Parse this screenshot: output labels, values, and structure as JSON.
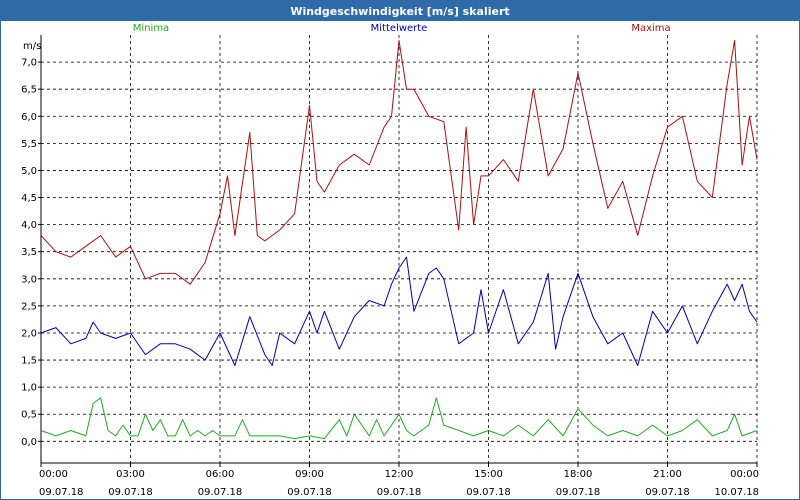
{
  "window": {
    "title": "Windgeschwindigkeit [m/s] skaliert"
  },
  "chart_data": {
    "type": "line",
    "title": "Windgeschwindigkeit [m/s] skaliert",
    "ylabel": "m/s",
    "ylim": [
      -0.4,
      7.5
    ],
    "yticks": [
      "0,0",
      "0,5",
      "1,0",
      "1,5",
      "2,0",
      "2,5",
      "3,0",
      "3,5",
      "4,0",
      "4,5",
      "5,0",
      "5,5",
      "6,0",
      "6,5",
      "7,0"
    ],
    "xticks": [
      {
        "time": "00:00",
        "date": "09.07.18"
      },
      {
        "time": "03:00",
        "date": "09.07.18"
      },
      {
        "time": "06:00",
        "date": "09.07.18"
      },
      {
        "time": "09:00",
        "date": "09.07.18"
      },
      {
        "time": "12:00",
        "date": "09.07.18"
      },
      {
        "time": "15:00",
        "date": "09.07.18"
      },
      {
        "time": "18:00",
        "date": "09.07.18"
      },
      {
        "time": "21:00",
        "date": "09.07.18"
      },
      {
        "time": "00:00",
        "date": "10.07.18"
      }
    ],
    "xrange_hours": [
      0,
      24
    ],
    "grid": true,
    "legend_position": "top",
    "series": [
      {
        "name": "Minima",
        "color": "#22aa22",
        "x": [
          0,
          0.5,
          1,
          1.5,
          1.75,
          2,
          2.25,
          2.5,
          2.75,
          3,
          3.25,
          3.5,
          3.75,
          4,
          4.25,
          4.5,
          4.75,
          5,
          5.25,
          5.5,
          5.75,
          6,
          6.5,
          6.75,
          7,
          7.5,
          8,
          8.5,
          9,
          9.5,
          10,
          10.25,
          10.5,
          11,
          11.25,
          11.5,
          12,
          12.25,
          12.5,
          13,
          13.25,
          13.5,
          14,
          14.5,
          15,
          15.5,
          16,
          16.5,
          17,
          17.5,
          18,
          18.5,
          19,
          19.5,
          20,
          20.5,
          21,
          21.5,
          22,
          22.5,
          23,
          23.25,
          23.5,
          24
        ],
        "values": [
          0.2,
          0.1,
          0.2,
          0.1,
          0.7,
          0.8,
          0.2,
          0.1,
          0.3,
          0.1,
          0.1,
          0.5,
          0.2,
          0.4,
          0.1,
          0.1,
          0.4,
          0.1,
          0.2,
          0.1,
          0.2,
          0.1,
          0.1,
          0.4,
          0.1,
          0.1,
          0.1,
          0.05,
          0.1,
          0.05,
          0.4,
          0.1,
          0.5,
          0.1,
          0.4,
          0.1,
          0.5,
          0.2,
          0.1,
          0.3,
          0.8,
          0.3,
          0.2,
          0.1,
          0.2,
          0.1,
          0.3,
          0.1,
          0.4,
          0.1,
          0.6,
          0.3,
          0.1,
          0.2,
          0.1,
          0.3,
          0.1,
          0.2,
          0.4,
          0.1,
          0.2,
          0.5,
          0.1,
          0.2
        ]
      },
      {
        "name": "Mittelwerte",
        "color": "#0000aa",
        "x": [
          0,
          0.5,
          1,
          1.5,
          1.75,
          2,
          2.5,
          3,
          3.5,
          4,
          4.5,
          5,
          5.5,
          6,
          6.5,
          7,
          7.5,
          7.75,
          8,
          8.5,
          9,
          9.25,
          9.5,
          10,
          10.5,
          11,
          11.5,
          11.75,
          12,
          12.25,
          12.5,
          13,
          13.25,
          13.5,
          14,
          14.5,
          14.75,
          15,
          15.5,
          16,
          16.5,
          17,
          17.25,
          17.5,
          18,
          18.5,
          19,
          19.5,
          20,
          20.5,
          21,
          21.5,
          22,
          22.5,
          23,
          23.25,
          23.5,
          23.75,
          24
        ],
        "values": [
          2.0,
          2.1,
          1.8,
          1.9,
          2.2,
          2.0,
          1.9,
          2.0,
          1.6,
          1.8,
          1.8,
          1.7,
          1.5,
          2.0,
          1.4,
          2.3,
          1.6,
          1.4,
          2.0,
          1.8,
          2.4,
          2.0,
          2.4,
          1.7,
          2.3,
          2.6,
          2.5,
          2.9,
          3.2,
          3.4,
          2.4,
          3.1,
          3.2,
          3.0,
          1.8,
          2.0,
          2.8,
          2.0,
          2.8,
          1.8,
          2.2,
          3.1,
          1.7,
          2.3,
          3.1,
          2.3,
          1.8,
          2.0,
          1.4,
          2.4,
          2.0,
          2.5,
          1.8,
          2.4,
          2.9,
          2.6,
          2.9,
          2.4,
          2.2
        ]
      },
      {
        "name": "Maxima",
        "color": "#aa1111",
        "x": [
          0,
          0.5,
          1,
          1.5,
          2,
          2.5,
          3,
          3.5,
          4,
          4.5,
          5,
          5.5,
          6,
          6.25,
          6.5,
          7,
          7.25,
          7.5,
          8,
          8.5,
          9,
          9.25,
          9.5,
          10,
          10.5,
          11,
          11.5,
          11.75,
          12,
          12.25,
          12.5,
          13,
          13.5,
          14,
          14.25,
          14.5,
          14.75,
          15,
          15.5,
          16,
          16.5,
          17,
          17.5,
          18,
          18.5,
          19,
          19.5,
          20,
          20.5,
          21,
          21.5,
          22,
          22.5,
          23,
          23.25,
          23.5,
          23.75,
          24
        ],
        "values": [
          3.8,
          3.5,
          3.4,
          3.6,
          3.8,
          3.4,
          3.6,
          3.0,
          3.1,
          3.1,
          2.9,
          3.3,
          4.2,
          4.9,
          3.8,
          5.7,
          3.8,
          3.7,
          3.9,
          4.2,
          6.2,
          4.8,
          4.6,
          5.1,
          5.3,
          5.1,
          5.8,
          6.0,
          7.4,
          6.5,
          6.5,
          6.0,
          5.9,
          3.9,
          5.8,
          4.0,
          4.9,
          4.9,
          5.2,
          4.8,
          6.5,
          4.9,
          5.4,
          6.8,
          5.5,
          4.3,
          4.8,
          3.8,
          4.9,
          5.8,
          6.0,
          4.8,
          4.5,
          6.6,
          7.4,
          5.1,
          6.0,
          5.2
        ]
      }
    ]
  }
}
